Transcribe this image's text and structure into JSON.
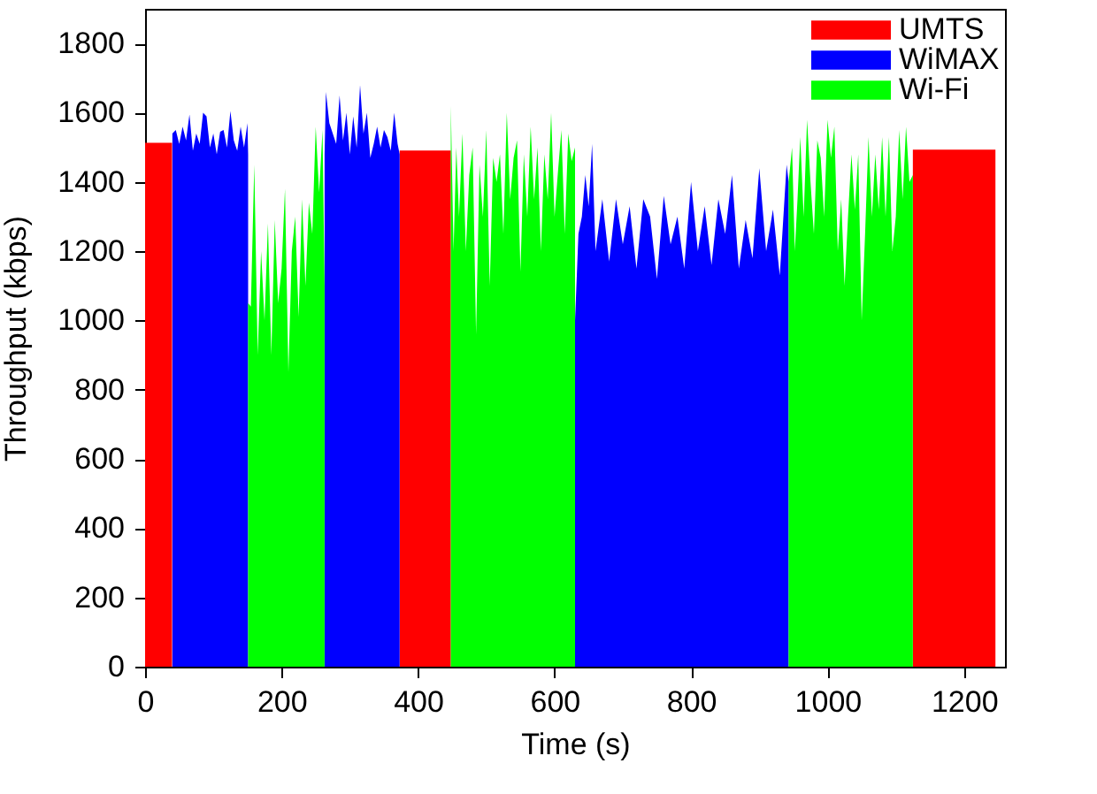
{
  "chart_data": {
    "type": "area",
    "xlabel": "Time (s)",
    "ylabel": "Throughput (kbps)",
    "xlim": [
      0,
      1260
    ],
    "xticks": [
      0,
      200,
      400,
      600,
      800,
      1000,
      1200
    ],
    "ylim": [
      0,
      1900
    ],
    "yticks": [
      0,
      200,
      400,
      600,
      800,
      1000,
      1200,
      1400,
      1600,
      1800
    ],
    "grid": false,
    "legend": "top right",
    "series": [
      {
        "name": "UMTS",
        "color": "#ff0000",
        "x": [
          0,
          39.5,
          200,
          373,
          448,
          800,
          1125,
          1246
        ],
        "values": [
          1513,
          1513,
          null,
          1491,
          1491,
          null,
          1493,
          1493
        ]
      },
      {
        "name": "WiMAX",
        "color": "#0000ff",
        "x": [
          40,
          45,
          50,
          55,
          60,
          65,
          70,
          75,
          80,
          85,
          90,
          95,
          100,
          105,
          110,
          115,
          120,
          125,
          130,
          135,
          140,
          145,
          150,
          151,
          200,
          263,
          265,
          270,
          275,
          280,
          285,
          290,
          295,
          300,
          305,
          310,
          315,
          320,
          325,
          330,
          335,
          340,
          345,
          350,
          355,
          360,
          365,
          370,
          373,
          500,
          630,
          635,
          640,
          645,
          650,
          655,
          660,
          670,
          680,
          690,
          700,
          710,
          720,
          730,
          740,
          750,
          760,
          770,
          780,
          790,
          800,
          810,
          820,
          830,
          840,
          850,
          860,
          870,
          880,
          890,
          900,
          910,
          920,
          930,
          940,
          943
        ],
        "values": [
          1540,
          1550,
          1510,
          1560,
          1520,
          1595,
          1490,
          1540,
          1510,
          1600,
          1590,
          1500,
          1540,
          1480,
          1545,
          1550,
          1500,
          1605,
          1520,
          1490,
          1560,
          1500,
          1570,
          1480,
          null,
          1480,
          1660,
          1570,
          1540,
          1510,
          1650,
          1520,
          1600,
          1480,
          1590,
          1500,
          1680,
          1540,
          1600,
          1470,
          1510,
          1560,
          1500,
          1550,
          1530,
          1490,
          1600,
          1510,
          1480,
          null,
          1000,
          1250,
          1300,
          1420,
          1330,
          1510,
          1200,
          1350,
          1170,
          1350,
          1220,
          1330,
          1150,
          1350,
          1300,
          1120,
          1360,
          1220,
          1300,
          1150,
          1400,
          1200,
          1330,
          1160,
          1350,
          1250,
          1420,
          1150,
          1290,
          1180,
          1440,
          1200,
          1320,
          1130,
          1450,
          1400
        ]
      },
      {
        "name": "Wi-Fi",
        "color": "#00ff00",
        "x": [
          151,
          155,
          160,
          165,
          170,
          175,
          180,
          185,
          190,
          195,
          200,
          205,
          210,
          215,
          220,
          225,
          230,
          235,
          240,
          245,
          250,
          255,
          260,
          263,
          400,
          448,
          452,
          456,
          460,
          465,
          470,
          475,
          480,
          485,
          490,
          495,
          500,
          505,
          510,
          515,
          520,
          525,
          530,
          535,
          540,
          545,
          550,
          555,
          560,
          565,
          570,
          575,
          580,
          585,
          590,
          595,
          600,
          605,
          610,
          615,
          620,
          625,
          630,
          800,
          943,
          948,
          952,
          956,
          960,
          965,
          970,
          975,
          980,
          985,
          990,
          995,
          1000,
          1005,
          1010,
          1015,
          1020,
          1025,
          1030,
          1035,
          1040,
          1045,
          1050,
          1055,
          1060,
          1065,
          1070,
          1075,
          1080,
          1085,
          1090,
          1095,
          1100,
          1105,
          1110,
          1115,
          1120,
          1125
        ],
        "values": [
          1050,
          1040,
          1450,
          900,
          1200,
          1000,
          1280,
          900,
          1290,
          1050,
          1150,
          1380,
          850,
          1200,
          1300,
          1010,
          1350,
          1100,
          1340,
          1250,
          1560,
          1370,
          1550,
          1100,
          null,
          1620,
          1200,
          1500,
          1300,
          1540,
          1200,
          1420,
          1500,
          960,
          1450,
          1300,
          1550,
          1100,
          1470,
          1400,
          1480,
          1250,
          1600,
          1350,
          1470,
          1520,
          1140,
          1480,
          1300,
          1560,
          1350,
          1500,
          1200,
          1480,
          1350,
          1600,
          1300,
          1430,
          1550,
          1250,
          1540,
          1460,
          1500,
          null,
          1400,
          1500,
          1200,
          1350,
          1530,
          1300,
          1580,
          1400,
          1250,
          1520,
          1470,
          1300,
          1580,
          1470,
          1560,
          1200,
          1350,
          1100,
          1300,
          1480,
          1320,
          1480,
          1000,
          1250,
          1530,
          1300,
          1480,
          1320,
          1530,
          1300,
          1530,
          1200,
          1300,
          1550,
          1350,
          1560,
          1400,
          1420
        ]
      }
    ]
  }
}
